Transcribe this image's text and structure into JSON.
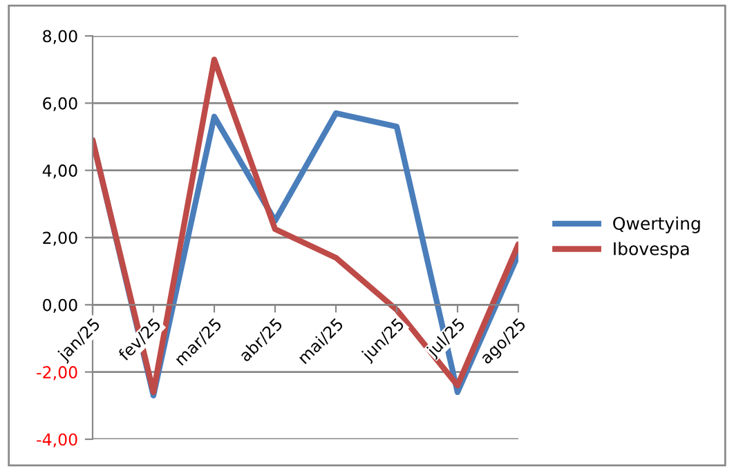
{
  "chart_data": {
    "type": "line",
    "categories": [
      "jan/25",
      "fev/25",
      "mar/25",
      "abr/25",
      "mai/25",
      "jun/25",
      "jul/25",
      "ago/25"
    ],
    "ylim": [
      -4,
      8
    ],
    "yticks": [
      {
        "value": -4,
        "label": "-4,00"
      },
      {
        "value": -2,
        "label": "-2,00"
      },
      {
        "value": 0,
        "label": "0,00"
      },
      {
        "value": 2,
        "label": "2,00"
      },
      {
        "value": 4,
        "label": "4,00"
      },
      {
        "value": 6,
        "label": "6,00"
      },
      {
        "value": 8,
        "label": "8,00"
      }
    ],
    "grid": "y",
    "legend": "right",
    "series": [
      {
        "name": "Qwertying",
        "color": "#4a7ebb",
        "values": [
          4.9,
          -2.7,
          5.6,
          2.5,
          5.7,
          5.3,
          -2.6,
          1.5
        ]
      },
      {
        "name": "Ibovespa",
        "color": "#be4b48",
        "values": [
          4.9,
          -2.6,
          7.3,
          2.25,
          1.4,
          -0.15,
          -2.4,
          1.8
        ]
      }
    ]
  }
}
